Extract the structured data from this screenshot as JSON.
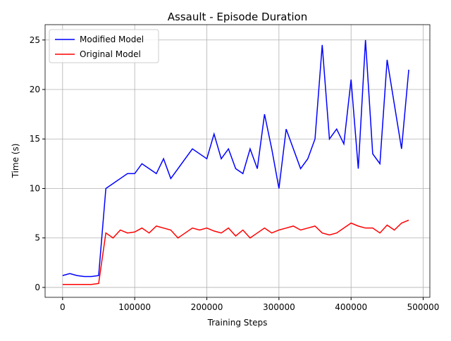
{
  "chart_data": {
    "type": "line",
    "title": "Assault - Episode Duration",
    "x_label": "Training Steps",
    "y_label": "Time (s)",
    "x": [
      0,
      10000,
      20000,
      30000,
      40000,
      50000,
      60000,
      70000,
      80000,
      90000,
      100000,
      110000,
      120000,
      130000,
      140000,
      150000,
      160000,
      170000,
      180000,
      190000,
      200000,
      210000,
      220000,
      230000,
      240000,
      250000,
      260000,
      270000,
      280000,
      290000,
      300000,
      310000,
      320000,
      330000,
      340000,
      350000,
      360000,
      370000,
      380000,
      390000,
      400000,
      410000,
      420000,
      430000,
      440000,
      450000,
      460000,
      470000,
      480000
    ],
    "series": [
      {
        "name": "Modified Model",
        "color": "#0000ff",
        "values": [
          1.2,
          1.4,
          1.2,
          1.1,
          1.1,
          1.2,
          10.0,
          10.5,
          11.0,
          11.5,
          11.5,
          12.5,
          12.0,
          11.5,
          13.0,
          11.0,
          12.0,
          13.0,
          14.0,
          13.5,
          13.0,
          15.5,
          13.0,
          14.0,
          12.0,
          11.5,
          14.0,
          12.0,
          17.5,
          14.0,
          10.0,
          16.0,
          14.0,
          12.0,
          13.0,
          15.0,
          24.5,
          15.0,
          16.0,
          14.5,
          21.0,
          12.0,
          25.0,
          13.5,
          12.5,
          23.0,
          18.5,
          14.0,
          22.0
        ]
      },
      {
        "name": "Original Model",
        "color": "#ff0000",
        "values": [
          0.3,
          0.3,
          0.3,
          0.3,
          0.3,
          0.4,
          5.5,
          5.0,
          5.8,
          5.5,
          5.6,
          6.0,
          5.5,
          6.2,
          6.0,
          5.8,
          5.0,
          5.5,
          6.0,
          5.8,
          6.0,
          5.7,
          5.5,
          6.0,
          5.2,
          5.8,
          5.0,
          5.5,
          6.0,
          5.5,
          5.8,
          6.0,
          6.2,
          5.8,
          6.0,
          6.2,
          5.5,
          5.3,
          5.5,
          6.0,
          6.5,
          6.2,
          6.0,
          6.0,
          5.5,
          6.3,
          5.8,
          6.5,
          6.8
        ]
      }
    ],
    "xlim": [
      -24250,
      509250
    ],
    "ylim": [
      -1.0,
      26.55
    ],
    "xticks": [
      0,
      100000,
      200000,
      300000,
      400000,
      500000
    ],
    "yticks": [
      0,
      5,
      10,
      15,
      20,
      25
    ],
    "grid": true,
    "legend": "upper-left"
  }
}
